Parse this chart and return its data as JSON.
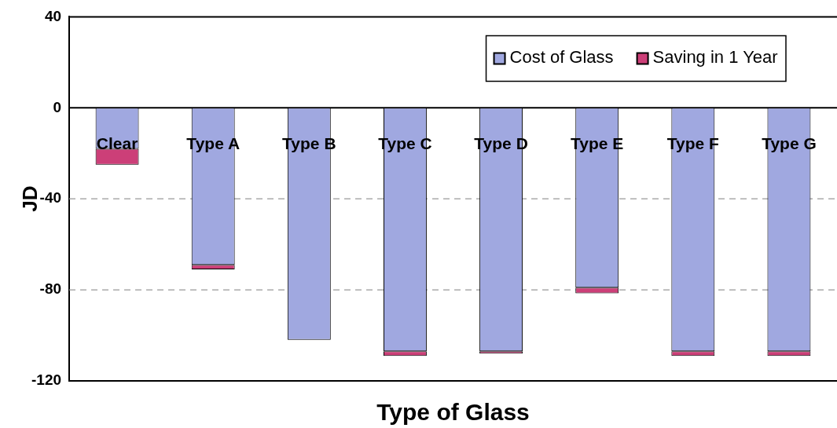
{
  "chart_data": {
    "type": "bar",
    "xlabel": "Type of Glass",
    "ylabel": "JD",
    "categories": [
      "Clear",
      "Type A",
      "Type B",
      "Type C",
      "Type D",
      "Type E",
      "Type F",
      "Type G"
    ],
    "series": [
      {
        "name": "Cost of Glass",
        "color": "#a0a8e0",
        "values": [
          -18,
          -69,
          -102,
          -107,
          -107,
          -79,
          -107,
          -107
        ]
      },
      {
        "name": "Saving in 1 Year",
        "color": "#cc3f78",
        "values": [
          -7,
          -2,
          0,
          -2,
          -1,
          -2.5,
          -2,
          -2
        ]
      }
    ],
    "stacked": true,
    "ylim": [
      -120,
      40
    ],
    "yticks": [
      -120,
      -80,
      -40,
      0,
      40
    ],
    "grid": "y",
    "legend": "top right"
  }
}
